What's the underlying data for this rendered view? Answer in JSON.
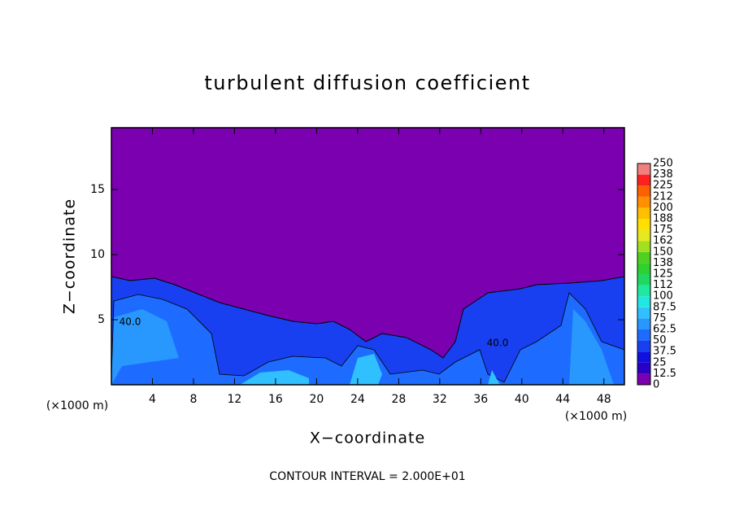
{
  "chart_data": {
    "type": "contour",
    "title": "turbulent diffusion coefficient",
    "xlabel": "X−coordinate",
    "ylabel": "Z−coordinate",
    "x_unit_left": "(×1000 m)",
    "x_unit_right": "(×1000 m)",
    "footnote": "CONTOUR INTERVAL = 2.000E+01",
    "xlim": [
      0,
      50
    ],
    "xticks": [
      4,
      8,
      12,
      16,
      20,
      24,
      28,
      32,
      36,
      40,
      44,
      48
    ],
    "ylim": [
      0,
      19.75
    ],
    "yticks": [
      5,
      10,
      15
    ],
    "annotations": [
      "40.0",
      "40.0"
    ],
    "colorbar": {
      "levels": [
        0,
        12.5,
        25,
        37.5,
        50,
        62.5,
        75,
        87.5,
        100,
        112,
        125,
        138,
        150,
        162,
        175,
        188,
        200,
        212,
        225,
        238,
        250
      ],
      "colors": [
        "#7a00b0",
        "#2a00c8",
        "#1010e0",
        "#1840f0",
        "#1e6cff",
        "#2898ff",
        "#30c0ff",
        "#20e8e0",
        "#20e8a0",
        "#20d860",
        "#30d030",
        "#50d020",
        "#a0e020",
        "#e8e820",
        "#ffe000",
        "#ffc000",
        "#ff9000",
        "#ff6000",
        "#ff2020",
        "#f08080"
      ]
    }
  }
}
